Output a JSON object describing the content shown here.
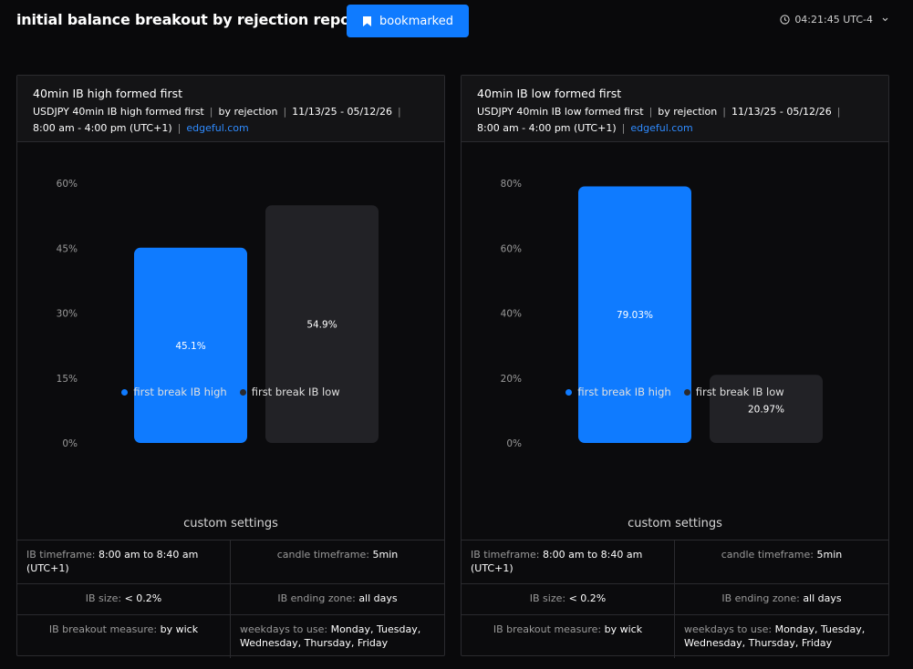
{
  "header": {
    "title": "initial balance breakout by rejection report",
    "bookmark_label": "bookmarked",
    "time": "04:21:45 UTC-4"
  },
  "colors": {
    "accent": "#0f7bff",
    "secondary_bar": "#222226",
    "link": "#2f8bff"
  },
  "cards": [
    {
      "title": "40min IB high formed first",
      "meta_1": "USDJPY 40min IB high formed first",
      "meta_2": "by rejection",
      "meta_3": "11/13/25 - 05/12/26",
      "meta_4": "8:00 am - 4:00 pm (UTC+1)",
      "link": "edgeful.com",
      "legend": [
        "first break IB high",
        "first break IB low"
      ],
      "settings_title": "custom settings",
      "settings": [
        {
          "label": "IB timeframe: ",
          "value": "8:00 am to 8:40 am (UTC+1)"
        },
        {
          "label": "candle timeframe: ",
          "value": "5min"
        },
        {
          "label": "IB size: ",
          "value": "< 0.2%"
        },
        {
          "label": "IB ending zone: ",
          "value": "all days"
        },
        {
          "label": "IB breakout measure: ",
          "value": "by wick"
        },
        {
          "label": "weekdays to use: ",
          "value": "Monday, Tuesday, Wednesday, Thursday, Friday"
        }
      ]
    },
    {
      "title": "40min IB low formed first",
      "meta_1": "USDJPY 40min IB low formed first",
      "meta_2": "by rejection",
      "meta_3": "11/13/25 - 05/12/26",
      "meta_4": "8:00 am - 4:00 pm (UTC+1)",
      "link": "edgeful.com",
      "legend": [
        "first break IB high",
        "first break IB low"
      ],
      "settings_title": "custom settings",
      "settings": [
        {
          "label": "IB timeframe: ",
          "value": "8:00 am to 8:40 am (UTC+1)"
        },
        {
          "label": "candle timeframe: ",
          "value": "5min"
        },
        {
          "label": "IB size: ",
          "value": "< 0.2%"
        },
        {
          "label": "IB ending zone: ",
          "value": "all days"
        },
        {
          "label": "IB breakout measure: ",
          "value": "by wick"
        },
        {
          "label": "weekdays to use: ",
          "value": "Monday, Tuesday, Wednesday, Thursday, Friday"
        }
      ]
    }
  ],
  "chart_data": [
    {
      "type": "bar",
      "categories": [
        "first break IB high",
        "first break IB low"
      ],
      "values": [
        45.1,
        54.9
      ],
      "labels": [
        "45.1%",
        "54.9%"
      ],
      "yticks": [
        "0%",
        "15%",
        "30%",
        "45%",
        "60%"
      ],
      "ylim": [
        0,
        60
      ]
    },
    {
      "type": "bar",
      "categories": [
        "first break IB high",
        "first break IB low"
      ],
      "values": [
        79.03,
        20.97
      ],
      "labels": [
        "79.03%",
        "20.97%"
      ],
      "yticks": [
        "0%",
        "20%",
        "40%",
        "60%",
        "80%"
      ],
      "ylim": [
        0,
        80
      ]
    }
  ]
}
